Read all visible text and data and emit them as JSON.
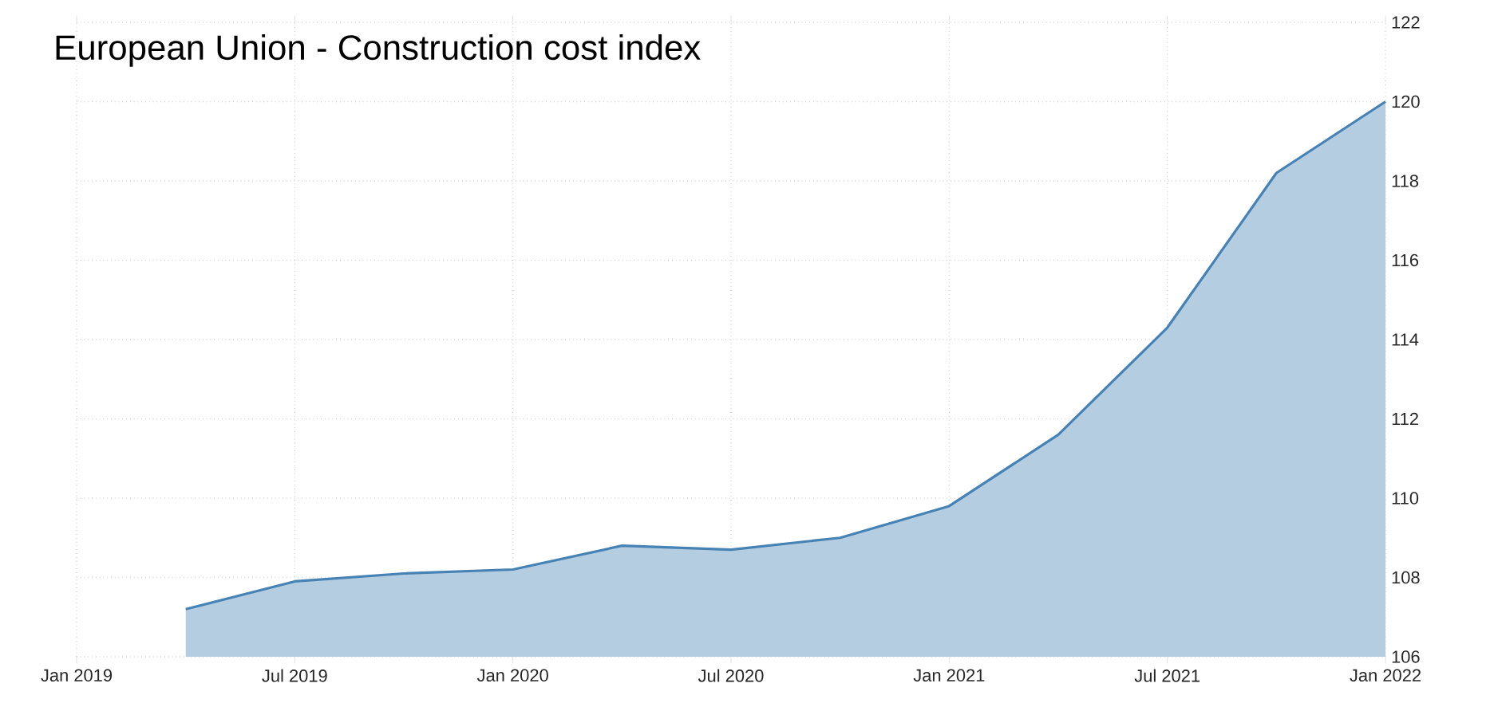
{
  "chart_data": {
    "type": "area",
    "title": "European Union - Construction cost index",
    "x": [
      "2019-04",
      "2019-07",
      "2019-10",
      "2020-01",
      "2020-04",
      "2020-07",
      "2020-10",
      "2021-01",
      "2021-04",
      "2021-07",
      "2021-10",
      "2022-01"
    ],
    "values": [
      107.2,
      107.9,
      108.1,
      108.2,
      108.8,
      108.7,
      109.0,
      109.8,
      111.6,
      114.3,
      118.2,
      120.0
    ],
    "color": "#4682b4",
    "xlim": [
      "2019-01",
      "2022-01"
    ],
    "xticks": [
      {
        "value": "2019-01",
        "label": "Jan 2019"
      },
      {
        "value": "2019-07",
        "label": "Jul 2019"
      },
      {
        "value": "2020-01",
        "label": "Jan 2020"
      },
      {
        "value": "2020-07",
        "label": "Jul 2020"
      },
      {
        "value": "2021-01",
        "label": "Jan 2021"
      },
      {
        "value": "2021-07",
        "label": "Jul 2021"
      },
      {
        "value": "2022-01",
        "label": "Jan 2022"
      }
    ],
    "ylim": [
      106,
      122
    ],
    "yticks": [
      106,
      108,
      110,
      112,
      114,
      116,
      118,
      120,
      122
    ],
    "grid": true
  }
}
